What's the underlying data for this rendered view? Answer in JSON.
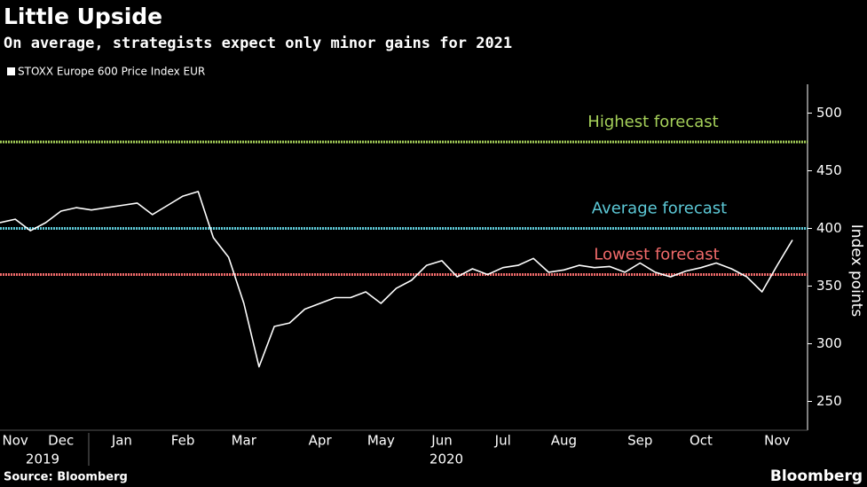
{
  "chart_data": {
    "type": "line",
    "title": "Little Upside",
    "subtitle": "On average, strategists expect only minor gains for 2021",
    "y_label": "Index points",
    "source": "Source: Bloomberg",
    "brand": "Bloomberg",
    "categories": [
      null,
      "Nov",
      null,
      null,
      "Dec",
      null,
      null,
      null,
      "Jan",
      null,
      null,
      null,
      "Feb",
      null,
      null,
      null,
      "Mar",
      null,
      null,
      null,
      null,
      "Apr",
      null,
      null,
      null,
      "May",
      null,
      null,
      null,
      "Jun",
      null,
      null,
      null,
      "Jul",
      null,
      null,
      null,
      "Aug",
      null,
      null,
      null,
      null,
      "Sep",
      null,
      null,
      null,
      "Oct",
      null,
      null,
      null,
      null,
      "Nov",
      null
    ],
    "year_labels": [
      "2019",
      "2020"
    ],
    "series": [
      {
        "name": "STOXX Europe 600 Price Index EUR",
        "color": "#ffffff",
        "values": [
          405,
          408,
          398,
          405,
          415,
          418,
          416,
          418,
          420,
          422,
          412,
          420,
          428,
          432,
          392,
          375,
          335,
          280,
          315,
          318,
          330,
          335,
          340,
          340,
          345,
          335,
          348,
          355,
          368,
          372,
          358,
          365,
          360,
          366,
          368,
          374,
          362,
          364,
          368,
          366,
          367,
          362,
          370,
          362,
          358,
          363,
          366,
          370,
          365,
          358,
          345,
          368,
          390
        ]
      }
    ],
    "reference_lines": [
      {
        "label": "Highest forecast",
        "value": 475,
        "color": "#a6d15a"
      },
      {
        "label": "Average forecast",
        "value": 400,
        "color": "#5cc8d6"
      },
      {
        "label": "Lowest forecast",
        "value": 360,
        "color": "#f06a6a"
      }
    ],
    "ylim": [
      225,
      525
    ],
    "yticks": [
      250,
      300,
      350,
      400,
      450,
      500
    ],
    "legend": "top-left"
  }
}
